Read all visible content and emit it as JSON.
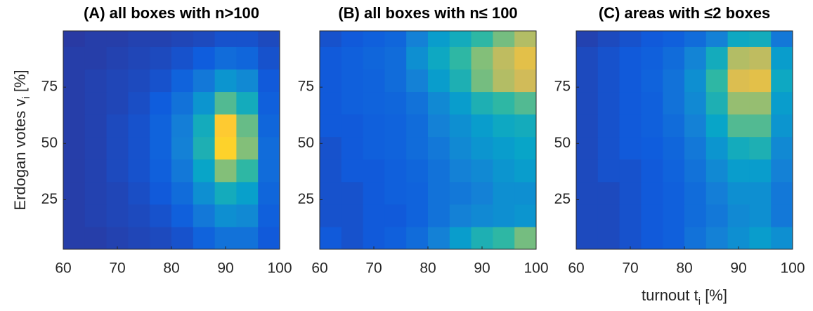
{
  "chart_data": [
    {
      "type": "heatmap",
      "title": "(A) all boxes with n>100",
      "ylabel": {
        "text": "Erdogan votes v",
        "sub": "i",
        "suffix": " [%]"
      },
      "xlim": [
        60,
        100
      ],
      "ylim": [
        3,
        100
      ],
      "xticks": [
        60,
        70,
        80,
        90,
        100
      ],
      "yticks": [
        25,
        50,
        75
      ],
      "xbins": [
        60,
        64,
        68,
        72,
        76,
        80,
        84,
        88,
        92,
        96,
        100
      ],
      "ybins": [
        3,
        13,
        23,
        33,
        43,
        53,
        63,
        73,
        83,
        93,
        100
      ],
      "clim": [
        0,
        1
      ],
      "colormap": [
        "#352a87",
        "#0f5cdd",
        "#1481d6",
        "#06a4ca",
        "#2eb7a4",
        "#87bf77",
        "#d1bb59",
        "#fec832",
        "#f9fb0e"
      ],
      "values": [
        [
          0.05,
          0.05,
          0.06,
          0.07,
          0.08,
          0.1,
          0.15,
          0.2,
          0.2,
          0.12
        ],
        [
          0.05,
          0.06,
          0.07,
          0.08,
          0.1,
          0.14,
          0.22,
          0.3,
          0.28,
          0.14
        ],
        [
          0.05,
          0.06,
          0.07,
          0.09,
          0.12,
          0.18,
          0.3,
          0.42,
          0.36,
          0.16
        ],
        [
          0.05,
          0.06,
          0.08,
          0.1,
          0.14,
          0.22,
          0.38,
          0.62,
          0.5,
          0.18
        ],
        [
          0.05,
          0.06,
          0.08,
          0.1,
          0.15,
          0.25,
          0.45,
          0.9,
          0.62,
          0.18
        ],
        [
          0.05,
          0.06,
          0.08,
          0.1,
          0.15,
          0.24,
          0.42,
          0.88,
          0.58,
          0.16
        ],
        [
          0.05,
          0.06,
          0.07,
          0.09,
          0.13,
          0.2,
          0.32,
          0.55,
          0.42,
          0.14
        ],
        [
          0.05,
          0.06,
          0.07,
          0.08,
          0.1,
          0.15,
          0.22,
          0.32,
          0.28,
          0.12
        ],
        [
          0.05,
          0.05,
          0.06,
          0.07,
          0.08,
          0.1,
          0.13,
          0.18,
          0.16,
          0.1
        ],
        [
          0.04,
          0.05,
          0.05,
          0.06,
          0.06,
          0.07,
          0.08,
          0.1,
          0.1,
          0.08
        ]
      ]
    },
    {
      "type": "heatmap",
      "title": "(B) all boxes with n≤ 100",
      "xlim": [
        60,
        100
      ],
      "ylim": [
        3,
        100
      ],
      "xticks": [
        60,
        70,
        80,
        90,
        100
      ],
      "yticks": [
        25,
        50,
        75
      ],
      "xbins": [
        60,
        64,
        68,
        72,
        76,
        80,
        84,
        88,
        92,
        96,
        100
      ],
      "ybins": [
        3,
        13,
        23,
        33,
        43,
        53,
        63,
        73,
        83,
        93,
        100
      ],
      "clim": [
        0,
        1
      ],
      "colormap": [
        "#352a87",
        "#0f5cdd",
        "#1481d6",
        "#06a4ca",
        "#2eb7a4",
        "#87bf77",
        "#d1bb59",
        "#fec832",
        "#f9fb0e"
      ],
      "values": [
        [
          0.12,
          0.1,
          0.12,
          0.14,
          0.18,
          0.25,
          0.35,
          0.45,
          0.5,
          0.6
        ],
        [
          0.1,
          0.1,
          0.12,
          0.12,
          0.15,
          0.2,
          0.25,
          0.28,
          0.3,
          0.32
        ],
        [
          0.1,
          0.1,
          0.12,
          0.14,
          0.15,
          0.2,
          0.22,
          0.25,
          0.3,
          0.3
        ],
        [
          0.1,
          0.12,
          0.12,
          0.14,
          0.16,
          0.2,
          0.25,
          0.28,
          0.32,
          0.35
        ],
        [
          0.1,
          0.12,
          0.14,
          0.15,
          0.18,
          0.22,
          0.28,
          0.32,
          0.35,
          0.38
        ],
        [
          0.12,
          0.12,
          0.14,
          0.15,
          0.18,
          0.25,
          0.3,
          0.35,
          0.4,
          0.42
        ],
        [
          0.12,
          0.14,
          0.15,
          0.16,
          0.2,
          0.28,
          0.35,
          0.45,
          0.5,
          0.55
        ],
        [
          0.12,
          0.14,
          0.15,
          0.18,
          0.25,
          0.35,
          0.45,
          0.6,
          0.7,
          0.75
        ],
        [
          0.12,
          0.14,
          0.16,
          0.18,
          0.3,
          0.4,
          0.5,
          0.62,
          0.72,
          0.8
        ],
        [
          0.1,
          0.12,
          0.14,
          0.16,
          0.25,
          0.35,
          0.42,
          0.5,
          0.6,
          0.7
        ]
      ]
    },
    {
      "type": "heatmap",
      "title": "(C) areas with ≤2 boxes",
      "xlabel": {
        "text": "turnout t",
        "sub": "i",
        "suffix": " [%]"
      },
      "xlim": [
        60,
        100
      ],
      "ylim": [
        3,
        100
      ],
      "xticks": [
        60,
        70,
        80,
        90,
        100
      ],
      "yticks": [
        25,
        50,
        75
      ],
      "xbins": [
        60,
        64,
        68,
        72,
        76,
        80,
        84,
        88,
        92,
        96,
        100
      ],
      "ybins": [
        3,
        13,
        23,
        33,
        43,
        53,
        63,
        73,
        83,
        93,
        100
      ],
      "clim": [
        0,
        1
      ],
      "colormap": [
        "#352a87",
        "#0f5cdd",
        "#1481d6",
        "#06a4ca",
        "#2eb7a4",
        "#87bf77",
        "#d1bb59",
        "#fec832",
        "#f9fb0e"
      ],
      "values": [
        [
          0.08,
          0.08,
          0.1,
          0.12,
          0.14,
          0.2,
          0.25,
          0.3,
          0.35,
          0.3
        ],
        [
          0.08,
          0.08,
          0.1,
          0.12,
          0.14,
          0.18,
          0.22,
          0.28,
          0.3,
          0.22
        ],
        [
          0.08,
          0.08,
          0.1,
          0.12,
          0.14,
          0.18,
          0.24,
          0.3,
          0.3,
          0.22
        ],
        [
          0.08,
          0.1,
          0.1,
          0.12,
          0.15,
          0.2,
          0.28,
          0.35,
          0.35,
          0.25
        ],
        [
          0.08,
          0.1,
          0.12,
          0.13,
          0.16,
          0.22,
          0.32,
          0.42,
          0.45,
          0.28
        ],
        [
          0.08,
          0.1,
          0.12,
          0.14,
          0.18,
          0.25,
          0.38,
          0.55,
          0.55,
          0.32
        ],
        [
          0.08,
          0.1,
          0.12,
          0.14,
          0.2,
          0.28,
          0.45,
          0.65,
          0.65,
          0.35
        ],
        [
          0.08,
          0.1,
          0.12,
          0.15,
          0.2,
          0.3,
          0.5,
          0.78,
          0.8,
          0.4
        ],
        [
          0.08,
          0.1,
          0.12,
          0.14,
          0.18,
          0.26,
          0.42,
          0.7,
          0.72,
          0.35
        ],
        [
          0.06,
          0.08,
          0.1,
          0.12,
          0.14,
          0.18,
          0.25,
          0.4,
          0.42,
          0.22
        ]
      ]
    }
  ]
}
